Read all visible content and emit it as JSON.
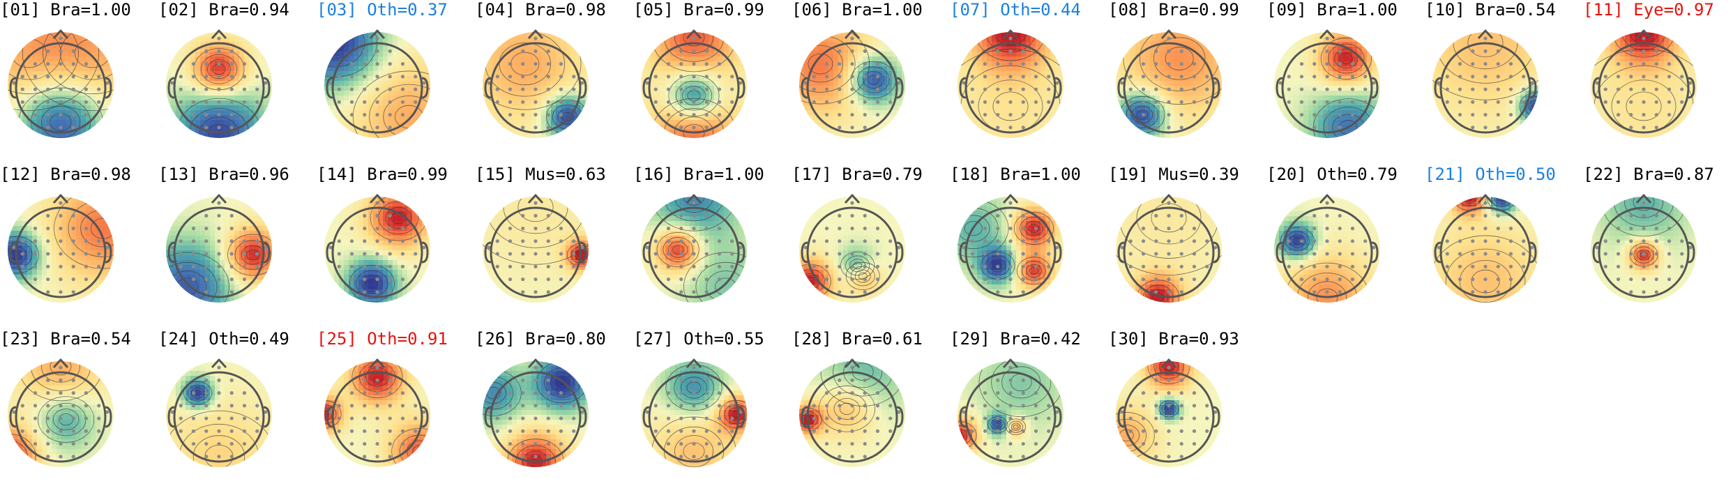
{
  "figure": {
    "colors": {
      "default": "#000000",
      "blue": "#1a7fe0",
      "red": "#e8120c"
    },
    "components": [
      {
        "index": "[01]",
        "label": "Bra",
        "score": "1.00",
        "color": "default",
        "pattern": [
          [
            0.5,
            0.85,
            -1.0,
            0.3
          ],
          [
            0.2,
            0.2,
            0.4,
            0.5
          ],
          [
            0.8,
            0.2,
            0.4,
            0.5
          ]
        ]
      },
      {
        "index": "[02]",
        "label": "Bra",
        "score": "0.94",
        "color": "default",
        "pattern": [
          [
            0.5,
            0.35,
            1.0,
            0.18
          ],
          [
            0.5,
            0.95,
            -0.9,
            0.3
          ]
        ]
      },
      {
        "index": "[03]",
        "label": "Oth",
        "score": "0.37",
        "color": "blue",
        "pattern": [
          [
            0.1,
            0.1,
            -1.0,
            0.3
          ],
          [
            0.8,
            0.8,
            0.5,
            0.4
          ]
        ]
      },
      {
        "index": "[04]",
        "label": "Bra",
        "score": "0.98",
        "color": "default",
        "pattern": [
          [
            0.8,
            0.8,
            -1.0,
            0.15
          ],
          [
            0.4,
            0.3,
            0.5,
            0.4
          ]
        ]
      },
      {
        "index": "[05]",
        "label": "Bra",
        "score": "0.99",
        "color": "default",
        "pattern": [
          [
            0.5,
            0.6,
            -1.0,
            0.18
          ],
          [
            0.5,
            0.05,
            0.8,
            0.3
          ],
          [
            0.5,
            0.95,
            0.8,
            0.3
          ]
        ]
      },
      {
        "index": "[06]",
        "label": "Bra",
        "score": "1.00",
        "color": "default",
        "pattern": [
          [
            0.7,
            0.45,
            -1.0,
            0.16
          ],
          [
            0.2,
            0.3,
            0.7,
            0.35
          ]
        ]
      },
      {
        "index": "[07]",
        "label": "Oth",
        "score": "0.44",
        "color": "blue",
        "pattern": [
          [
            0.5,
            0.0,
            1.0,
            0.25
          ],
          [
            0.5,
            0.7,
            0.2,
            0.5
          ]
        ]
      },
      {
        "index": "[08]",
        "label": "Bra",
        "score": "0.99",
        "color": "default",
        "pattern": [
          [
            0.25,
            0.78,
            -1.0,
            0.16
          ],
          [
            0.6,
            0.25,
            0.6,
            0.4
          ]
        ]
      },
      {
        "index": "[09]",
        "label": "Bra",
        "score": "1.00",
        "color": "default",
        "pattern": [
          [
            0.68,
            0.25,
            1.0,
            0.18
          ],
          [
            0.7,
            0.9,
            -0.7,
            0.25
          ]
        ]
      },
      {
        "index": "[10]",
        "label": "Bra",
        "score": "0.54",
        "color": "default",
        "pattern": [
          [
            0.98,
            0.7,
            -1.0,
            0.12
          ],
          [
            0.5,
            0.1,
            0.4,
            0.5
          ]
        ]
      },
      {
        "index": "[11]",
        "label": "Eye",
        "score": "0.97",
        "color": "red",
        "pattern": [
          [
            0.5,
            0.0,
            1.0,
            0.22
          ],
          [
            0.5,
            0.7,
            0.2,
            0.5
          ]
        ]
      },
      {
        "index": "[12]",
        "label": "Bra",
        "score": "0.98",
        "color": "default",
        "pattern": [
          [
            0.08,
            0.55,
            -1.0,
            0.16
          ],
          [
            0.9,
            0.3,
            0.7,
            0.35
          ]
        ]
      },
      {
        "index": "[13]",
        "label": "Bra",
        "score": "0.96",
        "color": "default",
        "pattern": [
          [
            0.82,
            0.55,
            1.0,
            0.18
          ],
          [
            0.2,
            0.85,
            -0.8,
            0.3
          ]
        ]
      },
      {
        "index": "[14]",
        "label": "Bra",
        "score": "0.99",
        "color": "default",
        "pattern": [
          [
            0.7,
            0.2,
            1.0,
            0.2
          ],
          [
            0.45,
            0.82,
            -1.0,
            0.16
          ]
        ]
      },
      {
        "index": "[15]",
        "label": "Mus",
        "score": "0.63",
        "color": "default",
        "pattern": [
          [
            0.93,
            0.55,
            1.0,
            0.1
          ],
          [
            0.5,
            0.1,
            0.15,
            0.5
          ]
        ]
      },
      {
        "index": "[16]",
        "label": "Bra",
        "score": "1.00",
        "color": "default",
        "pattern": [
          [
            0.35,
            0.5,
            1.0,
            0.15
          ],
          [
            0.5,
            0.0,
            -0.6,
            0.3
          ],
          [
            0.8,
            0.85,
            -0.3,
            0.3
          ]
        ]
      },
      {
        "index": "[17]",
        "label": "Bra",
        "score": "0.79",
        "color": "default",
        "pattern": [
          [
            0.1,
            0.8,
            1.0,
            0.15
          ],
          [
            0.55,
            0.65,
            -0.6,
            0.12
          ],
          [
            0.6,
            0.75,
            0.6,
            0.12
          ]
        ]
      },
      {
        "index": "[18]",
        "label": "Bra",
        "score": "1.00",
        "color": "default",
        "pattern": [
          [
            0.72,
            0.3,
            1.0,
            0.14
          ],
          [
            0.72,
            0.7,
            0.9,
            0.12
          ],
          [
            0.38,
            0.65,
            -0.9,
            0.12
          ],
          [
            0.15,
            0.3,
            -0.4,
            0.25
          ]
        ]
      },
      {
        "index": "[19]",
        "label": "Mus",
        "score": "0.39",
        "color": "default",
        "pattern": [
          [
            0.4,
            0.95,
            1.0,
            0.15
          ],
          [
            0.5,
            0.2,
            0.15,
            0.5
          ]
        ]
      },
      {
        "index": "[20]",
        "label": "Oth",
        "score": "0.79",
        "color": "default",
        "pattern": [
          [
            0.22,
            0.42,
            -1.0,
            0.12
          ],
          [
            0.5,
            0.95,
            0.6,
            0.3
          ]
        ]
      },
      {
        "index": "[21]",
        "label": "Oth",
        "score": "0.50",
        "color": "blue",
        "pattern": [
          [
            0.35,
            0.0,
            1.0,
            0.12
          ],
          [
            0.65,
            0.02,
            -1.0,
            0.1
          ],
          [
            0.5,
            0.8,
            0.4,
            0.4
          ]
        ]
      },
      {
        "index": "[22]",
        "label": "Bra",
        "score": "0.87",
        "color": "default",
        "pattern": [
          [
            0.5,
            0.55,
            1.0,
            0.1
          ],
          [
            0.5,
            0.05,
            -0.4,
            0.3
          ]
        ]
      },
      {
        "index": "[23]",
        "label": "Bra",
        "score": "0.54",
        "color": "default",
        "pattern": [
          [
            0.0,
            0.9,
            1.0,
            0.2
          ],
          [
            0.55,
            0.55,
            -0.5,
            0.2
          ],
          [
            0.5,
            0.05,
            0.5,
            0.3
          ]
        ]
      },
      {
        "index": "[24]",
        "label": "Oth",
        "score": "0.49",
        "color": "default",
        "pattern": [
          [
            0.3,
            0.3,
            -1.0,
            0.1
          ],
          [
            0.5,
            0.9,
            0.3,
            0.4
          ]
        ]
      },
      {
        "index": "[25]",
        "label": "Oth",
        "score": "0.91",
        "color": "red",
        "pattern": [
          [
            0.0,
            0.5,
            1.0,
            0.12
          ],
          [
            0.5,
            0.15,
            1.0,
            0.18
          ],
          [
            0.9,
            0.85,
            0.8,
            0.2
          ]
        ]
      },
      {
        "index": "[26]",
        "label": "Bra",
        "score": "0.80",
        "color": "default",
        "pattern": [
          [
            0.75,
            0.2,
            -1.0,
            0.18
          ],
          [
            0.5,
            0.95,
            1.0,
            0.2
          ],
          [
            0.1,
            0.3,
            -0.6,
            0.2
          ]
        ]
      },
      {
        "index": "[27]",
        "label": "Oth",
        "score": "0.55",
        "color": "default",
        "pattern": [
          [
            0.9,
            0.5,
            1.0,
            0.12
          ],
          [
            0.5,
            0.25,
            -0.6,
            0.2
          ],
          [
            0.5,
            0.85,
            0.4,
            0.3
          ]
        ]
      },
      {
        "index": "[28]",
        "label": "Bra",
        "score": "0.61",
        "color": "default",
        "pattern": [
          [
            0.08,
            0.55,
            1.0,
            0.1
          ],
          [
            0.45,
            0.45,
            0.5,
            0.2
          ],
          [
            0.6,
            0.1,
            -0.4,
            0.3
          ]
        ]
      },
      {
        "index": "[29]",
        "label": "Bra",
        "score": "0.42",
        "color": "default",
        "pattern": [
          [
            0.02,
            0.7,
            1.0,
            0.12
          ],
          [
            0.38,
            0.6,
            -0.8,
            0.07
          ],
          [
            0.55,
            0.62,
            0.6,
            0.07
          ],
          [
            0.6,
            0.2,
            -0.3,
            0.3
          ]
        ]
      },
      {
        "index": "[30]",
        "label": "Bra",
        "score": "0.93",
        "color": "default",
        "pattern": [
          [
            0.5,
            0.45,
            -1.0,
            0.07
          ],
          [
            0.5,
            0.05,
            1.0,
            0.15
          ],
          [
            0.1,
            0.7,
            0.5,
            0.2
          ]
        ]
      }
    ]
  }
}
